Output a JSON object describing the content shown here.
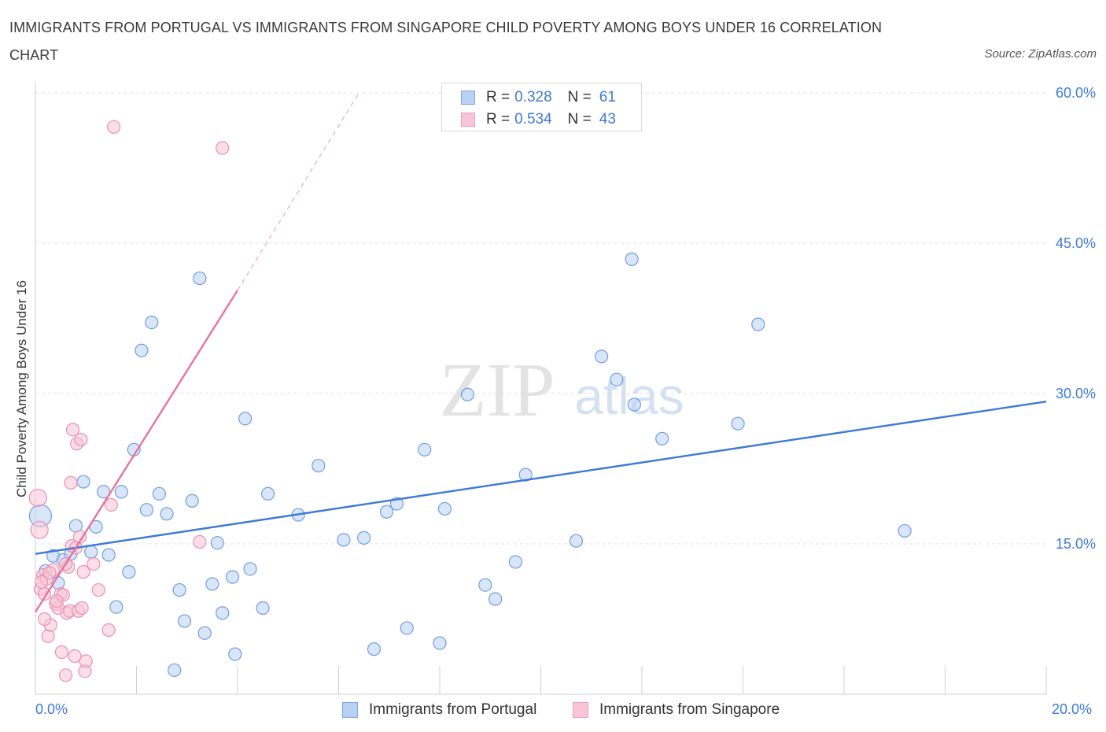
{
  "title": "IMMIGRANTS FROM PORTUGAL VS IMMIGRANTS FROM SINGAPORE CHILD POVERTY AMONG BOYS UNDER 16 CORRELATION CHART",
  "source": "Source: ZipAtlas.com",
  "watermark": {
    "zip": "ZIP",
    "atlas": "atlas"
  },
  "legend": {
    "r_label": "R =",
    "n_label": "N =",
    "series": [
      {
        "r": "0.328",
        "n": "61"
      },
      {
        "r": "0.534",
        "n": "43"
      }
    ]
  },
  "chart_data": {
    "type": "scatter",
    "title": "IMMIGRANTS FROM PORTUGAL VS IMMIGRANTS FROM SINGAPORE CHILD POVERTY AMONG BOYS UNDER 16 CORRELATION CHART",
    "xlabel": "",
    "ylabel": "Child Poverty Among Boys Under 16",
    "xlim": [
      0,
      20
    ],
    "ylim": [
      0,
      60
    ],
    "x_tick_labels": [
      "0.0%",
      "20.0%"
    ],
    "y_tick_labels": [
      "15.0%",
      "30.0%",
      "45.0%",
      "60.0%"
    ],
    "y_ticks": [
      15,
      30,
      45,
      60
    ],
    "grid": true,
    "colors": {
      "portugal": "#3d7ad6",
      "singapore": "#e8739a"
    },
    "series": [
      {
        "name": "Immigrants from Portugal",
        "color": "#3d7ad6",
        "trend": {
          "x0": 0,
          "y0": 14.0,
          "x1": 20,
          "y1": 29.2,
          "dashed_after": null
        },
        "points": [
          [
            0.1,
            17.8
          ],
          [
            0.2,
            12.3
          ],
          [
            0.35,
            13.8
          ],
          [
            0.45,
            11.1
          ],
          [
            0.55,
            13.4
          ],
          [
            0.7,
            14.0
          ],
          [
            0.8,
            16.8
          ],
          [
            0.95,
            21.2
          ],
          [
            1.1,
            14.2
          ],
          [
            1.2,
            16.7
          ],
          [
            1.35,
            20.2
          ],
          [
            1.45,
            13.9
          ],
          [
            1.6,
            8.7
          ],
          [
            1.7,
            20.2
          ],
          [
            1.85,
            12.2
          ],
          [
            1.95,
            24.4
          ],
          [
            2.1,
            34.3
          ],
          [
            2.2,
            18.4
          ],
          [
            2.3,
            37.1
          ],
          [
            2.45,
            20.0
          ],
          [
            2.6,
            18.0
          ],
          [
            2.75,
            2.4
          ],
          [
            2.85,
            10.4
          ],
          [
            2.95,
            7.3
          ],
          [
            3.1,
            19.3
          ],
          [
            3.25,
            41.5
          ],
          [
            3.35,
            6.1
          ],
          [
            3.5,
            11.0
          ],
          [
            3.6,
            15.1
          ],
          [
            3.7,
            8.1
          ],
          [
            3.9,
            11.7
          ],
          [
            3.95,
            4.0
          ],
          [
            4.15,
            27.5
          ],
          [
            4.25,
            12.5
          ],
          [
            4.5,
            8.6
          ],
          [
            4.6,
            20.0
          ],
          [
            5.2,
            17.9
          ],
          [
            5.6,
            22.8
          ],
          [
            6.1,
            15.4
          ],
          [
            6.5,
            15.6
          ],
          [
            6.7,
            4.5
          ],
          [
            6.95,
            18.2
          ],
          [
            7.15,
            19.0
          ],
          [
            7.35,
            6.6
          ],
          [
            7.7,
            24.4
          ],
          [
            8.0,
            5.1
          ],
          [
            8.1,
            18.5
          ],
          [
            8.55,
            29.9
          ],
          [
            8.9,
            10.9
          ],
          [
            9.1,
            9.5
          ],
          [
            9.5,
            13.2
          ],
          [
            9.7,
            21.9
          ],
          [
            10.7,
            15.3
          ],
          [
            11.2,
            33.7
          ],
          [
            11.5,
            31.4
          ],
          [
            11.85,
            28.9
          ],
          [
            12.4,
            25.5
          ],
          [
            11.8,
            43.4
          ],
          [
            13.9,
            27.0
          ],
          [
            14.3,
            36.9
          ],
          [
            17.2,
            16.3
          ]
        ]
      },
      {
        "name": "Immigrants from Singapore",
        "color": "#e8739a",
        "trend": {
          "x0": 0,
          "y0": 8.2,
          "x1": 4.0,
          "y1": 40.3,
          "dashed_to_x": 6.4,
          "dashed_to_y": 60.0
        },
        "points": [
          [
            0.05,
            19.6
          ],
          [
            0.08,
            16.4
          ],
          [
            0.1,
            10.5
          ],
          [
            0.15,
            11.9
          ],
          [
            0.18,
            10.0
          ],
          [
            0.22,
            11.5
          ],
          [
            0.25,
            5.8
          ],
          [
            0.3,
            6.9
          ],
          [
            0.35,
            12.4
          ],
          [
            0.4,
            9.0
          ],
          [
            0.45,
            8.6
          ],
          [
            0.5,
            10.0
          ],
          [
            0.52,
            4.2
          ],
          [
            0.55,
            9.9
          ],
          [
            0.6,
            1.9
          ],
          [
            0.62,
            8.1
          ],
          [
            0.65,
            12.7
          ],
          [
            0.68,
            8.3
          ],
          [
            0.7,
            21.1
          ],
          [
            0.72,
            14.8
          ],
          [
            0.74,
            26.4
          ],
          [
            0.78,
            3.8
          ],
          [
            0.8,
            14.6
          ],
          [
            0.82,
            25.0
          ],
          [
            0.85,
            8.3
          ],
          [
            0.88,
            15.7
          ],
          [
            0.9,
            25.4
          ],
          [
            0.92,
            8.6
          ],
          [
            0.95,
            12.2
          ],
          [
            0.98,
            2.3
          ],
          [
            1.0,
            3.3
          ],
          [
            1.15,
            13.0
          ],
          [
            1.45,
            6.4
          ],
          [
            1.5,
            18.9
          ],
          [
            1.55,
            56.6
          ],
          [
            1.25,
            10.4
          ],
          [
            3.25,
            15.2
          ],
          [
            3.7,
            54.5
          ],
          [
            0.6,
            13.0
          ],
          [
            0.42,
            9.3
          ],
          [
            0.28,
            12.1
          ],
          [
            0.18,
            7.5
          ],
          [
            0.12,
            11.2
          ]
        ]
      }
    ]
  },
  "bottom_legend": [
    "Immigrants from Portugal",
    "Immigrants from Singapore"
  ]
}
